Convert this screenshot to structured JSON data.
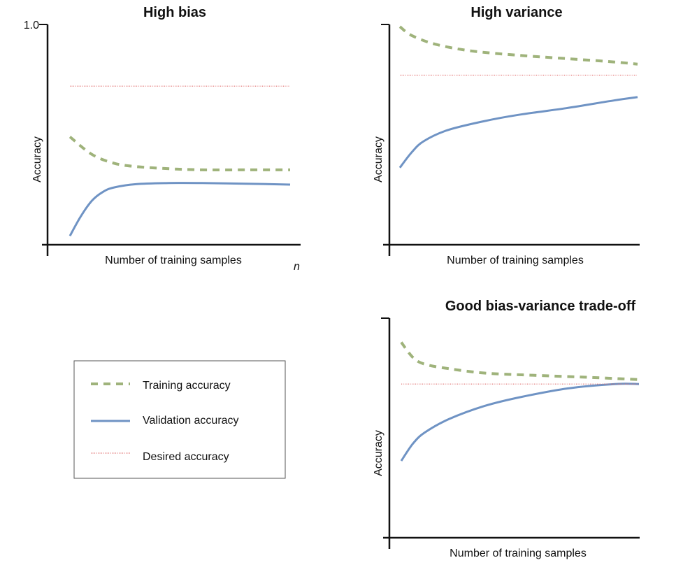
{
  "colors": {
    "training": "#9fb37b",
    "validation": "#6f93c4",
    "desired": "#e06b6b",
    "axis": "#111111"
  },
  "legend": {
    "items": [
      {
        "key": "training",
        "label": "Training accuracy",
        "style": "dashed"
      },
      {
        "key": "validation",
        "label": "Validation accuracy",
        "style": "solid"
      },
      {
        "key": "desired",
        "label": "Desired accuracy",
        "style": "dotted"
      }
    ]
  },
  "chart_data": [
    {
      "type": "line",
      "title": "High bias",
      "xlabel": "Number of training samples",
      "ylabel": "Accuracy",
      "y_tick_label": "1.0",
      "x_end_label": "n",
      "xlim": [
        0,
        1
      ],
      "ylim": [
        0,
        1
      ],
      "series": [
        {
          "name": "Training accuracy",
          "key": "training",
          "style": "dashed",
          "x": [
            0,
            0.1,
            0.2,
            0.3,
            0.45,
            0.6,
            0.8,
            1.0
          ],
          "y": [
            0.49,
            0.41,
            0.37,
            0.355,
            0.345,
            0.34,
            0.34,
            0.34
          ]
        },
        {
          "name": "Validation accuracy",
          "key": "validation",
          "style": "solid",
          "x": [
            0,
            0.05,
            0.1,
            0.15,
            0.2,
            0.3,
            0.45,
            0.6,
            0.8,
            1.0
          ],
          "y": [
            0.04,
            0.13,
            0.2,
            0.24,
            0.26,
            0.275,
            0.28,
            0.28,
            0.277,
            0.273
          ]
        },
        {
          "name": "Desired accuracy",
          "key": "desired",
          "style": "dotted",
          "x": [
            0,
            1.0
          ],
          "y": [
            0.72,
            0.72
          ]
        }
      ]
    },
    {
      "type": "line",
      "title": "High variance",
      "xlabel": "Number of training samples",
      "ylabel": "Accuracy",
      "xlim": [
        0,
        1
      ],
      "ylim": [
        0,
        1
      ],
      "series": [
        {
          "name": "Training accuracy",
          "key": "training",
          "style": "dashed",
          "x": [
            0,
            0.05,
            0.15,
            0.3,
            0.5,
            0.7,
            0.9,
            1.0
          ],
          "y": [
            0.99,
            0.95,
            0.91,
            0.88,
            0.86,
            0.845,
            0.83,
            0.82
          ]
        },
        {
          "name": "Validation accuracy",
          "key": "validation",
          "style": "solid",
          "x": [
            0,
            0.05,
            0.1,
            0.2,
            0.35,
            0.5,
            0.7,
            0.9,
            1.0
          ],
          "y": [
            0.35,
            0.42,
            0.47,
            0.52,
            0.56,
            0.59,
            0.62,
            0.655,
            0.67
          ]
        },
        {
          "name": "Desired accuracy",
          "key": "desired",
          "style": "dotted",
          "x": [
            0,
            1.0
          ],
          "y": [
            0.77,
            0.77
          ]
        }
      ]
    },
    {
      "type": "line",
      "title": "Good bias-variance trade-off",
      "xlabel": "Number of training samples",
      "ylabel": "Accuracy",
      "xlim": [
        0,
        1
      ],
      "ylim": [
        0,
        1
      ],
      "series": [
        {
          "name": "Training accuracy",
          "key": "training",
          "style": "dashed",
          "x": [
            0,
            0.05,
            0.1,
            0.2,
            0.35,
            0.55,
            0.8,
            1.0
          ],
          "y": [
            0.89,
            0.82,
            0.79,
            0.77,
            0.75,
            0.74,
            0.73,
            0.72
          ]
        },
        {
          "name": "Validation accuracy",
          "key": "validation",
          "style": "solid",
          "x": [
            0,
            0.05,
            0.1,
            0.2,
            0.35,
            0.5,
            0.7,
            0.9,
            1.0
          ],
          "y": [
            0.35,
            0.43,
            0.48,
            0.54,
            0.6,
            0.64,
            0.68,
            0.7,
            0.7
          ]
        },
        {
          "name": "Desired accuracy",
          "key": "desired",
          "style": "dotted",
          "x": [
            0,
            1.0
          ],
          "y": [
            0.7,
            0.7
          ]
        }
      ]
    }
  ]
}
